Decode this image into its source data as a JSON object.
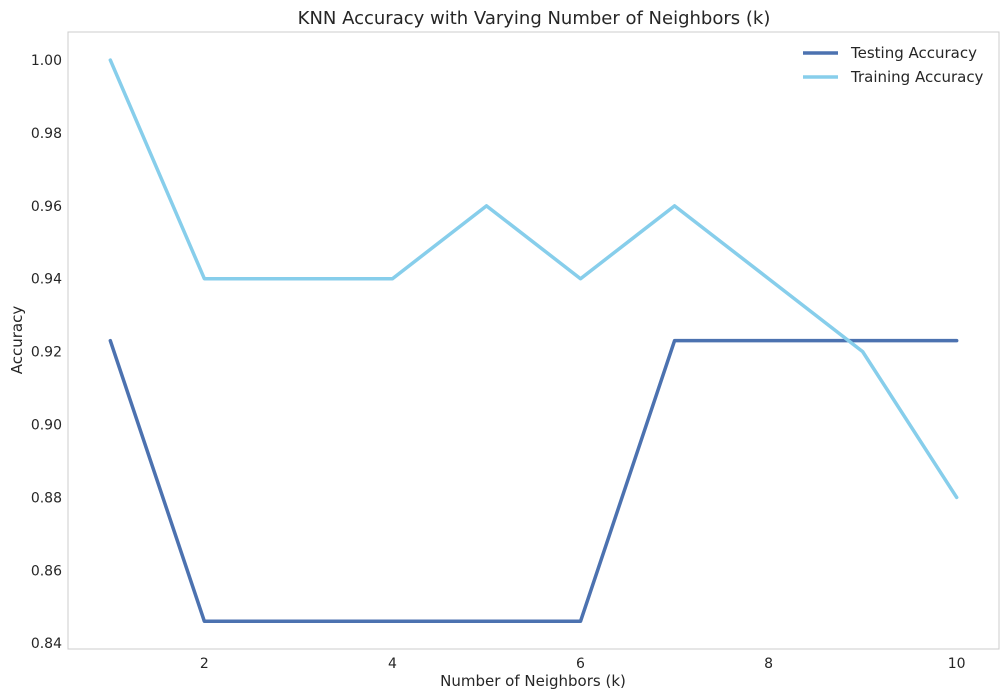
{
  "chart_data": {
    "type": "line",
    "title": "KNN Accuracy with Varying Number of Neighbors (k)",
    "xlabel": "Number of Neighbors (k)",
    "ylabel": "Accuracy",
    "x": [
      1,
      2,
      3,
      4,
      5,
      6,
      7,
      8,
      9,
      10
    ],
    "xlim": [
      0.55,
      10.45
    ],
    "ylim": [
      0.8384,
      1.0077
    ],
    "xticks": [
      2,
      4,
      6,
      8,
      10
    ],
    "yticks": [
      0.84,
      0.86,
      0.88,
      0.9,
      0.92,
      0.94,
      0.96,
      0.98,
      1.0
    ],
    "ytick_labels": [
      "0.84",
      "0.86",
      "0.88",
      "0.90",
      "0.92",
      "0.94",
      "0.96",
      "0.98",
      "1.00"
    ],
    "grid": false,
    "legend_position": "top-right",
    "series": [
      {
        "name": "Testing Accuracy",
        "color": "#4c72b0",
        "values": [
          0.923,
          0.846,
          0.846,
          0.846,
          0.846,
          0.846,
          0.923,
          0.923,
          0.923,
          0.923
        ]
      },
      {
        "name": "Training Accuracy",
        "color": "#87ceeb",
        "values": [
          1.0,
          0.94,
          0.94,
          0.94,
          0.96,
          0.94,
          0.96,
          0.94,
          0.92,
          0.88
        ]
      }
    ]
  }
}
